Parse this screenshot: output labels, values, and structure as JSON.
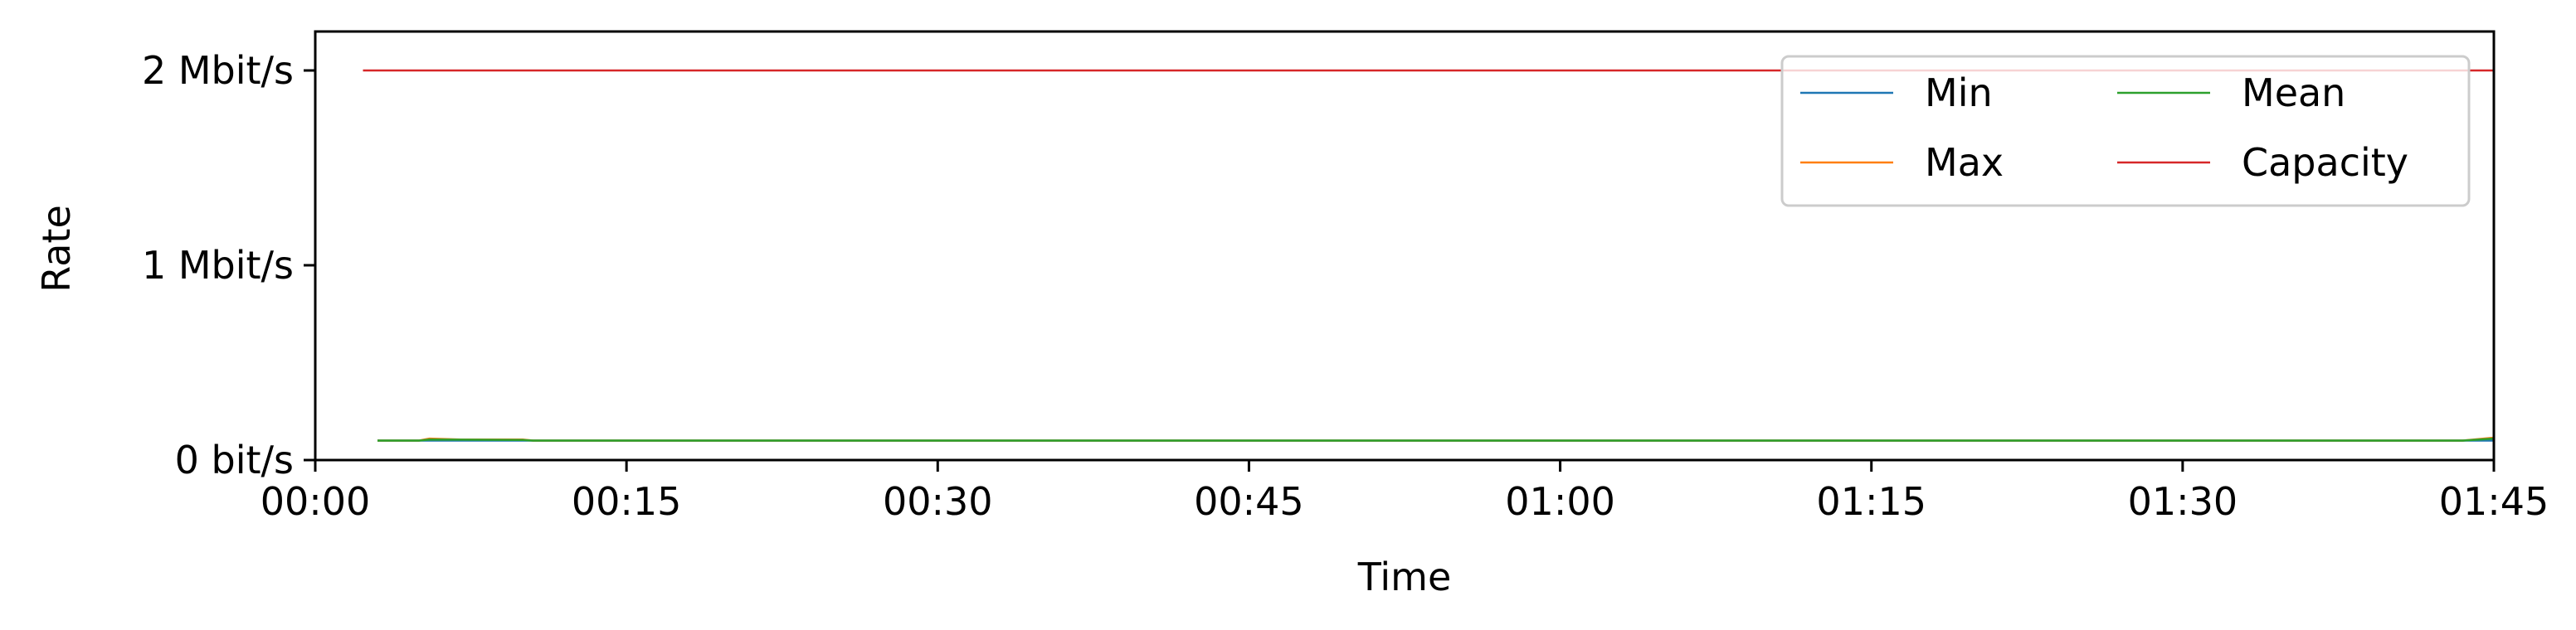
{
  "chart_data": {
    "type": "line",
    "xlabel": "Time",
    "ylabel": "Rate",
    "x_unit": "minutes",
    "xlim": [
      0,
      105
    ],
    "ylim": [
      0,
      2.2
    ],
    "y_unit": "Mbit/s",
    "x_ticks": [
      {
        "value": 0,
        "label": "00:00"
      },
      {
        "value": 15,
        "label": "00:15"
      },
      {
        "value": 30,
        "label": "00:30"
      },
      {
        "value": 45,
        "label": "00:45"
      },
      {
        "value": 60,
        "label": "01:00"
      },
      {
        "value": 75,
        "label": "01:15"
      },
      {
        "value": 90,
        "label": "01:30"
      },
      {
        "value": 105,
        "label": "01:45"
      }
    ],
    "y_ticks": [
      {
        "value": 0,
        "label": "0 bit/s"
      },
      {
        "value": 1,
        "label": "1 Mbit/s"
      },
      {
        "value": 2,
        "label": "2 Mbit/s"
      }
    ],
    "grid": false,
    "legend": {
      "placement": "top-right",
      "columns": 2
    },
    "series": [
      {
        "name": "Min",
        "color": "#1f77b4",
        "points": [
          [
            3,
            0.1
          ],
          [
            10,
            0.1
          ],
          [
            20,
            0.1
          ],
          [
            40,
            0.1
          ],
          [
            60,
            0.1
          ],
          [
            80,
            0.1
          ],
          [
            100,
            0.1
          ],
          [
            104,
            0.1
          ],
          [
            105,
            0.1
          ]
        ]
      },
      {
        "name": "Max",
        "color": "#ff7f0e",
        "points": [
          [
            3,
            0.1
          ],
          [
            5,
            0.1
          ],
          [
            5.5,
            0.11
          ],
          [
            7,
            0.105
          ],
          [
            10,
            0.105
          ],
          [
            10.5,
            0.1
          ],
          [
            20,
            0.1
          ],
          [
            40,
            0.1
          ],
          [
            60,
            0.1
          ],
          [
            80,
            0.1
          ],
          [
            100,
            0.1
          ],
          [
            103.5,
            0.1
          ],
          [
            105,
            0.115
          ]
        ]
      },
      {
        "name": "Mean",
        "color": "#2ca02c",
        "points": [
          [
            3,
            0.1
          ],
          [
            5,
            0.1
          ],
          [
            5.5,
            0.105
          ],
          [
            10,
            0.103
          ],
          [
            10.5,
            0.1
          ],
          [
            20,
            0.1
          ],
          [
            40,
            0.1
          ],
          [
            60,
            0.1
          ],
          [
            80,
            0.1
          ],
          [
            100,
            0.1
          ],
          [
            103.5,
            0.1
          ],
          [
            105,
            0.11
          ]
        ]
      },
      {
        "name": "Capacity",
        "color": "#d62728",
        "points": [
          [
            2.3,
            2.0
          ],
          [
            105,
            2.0
          ]
        ]
      }
    ]
  }
}
